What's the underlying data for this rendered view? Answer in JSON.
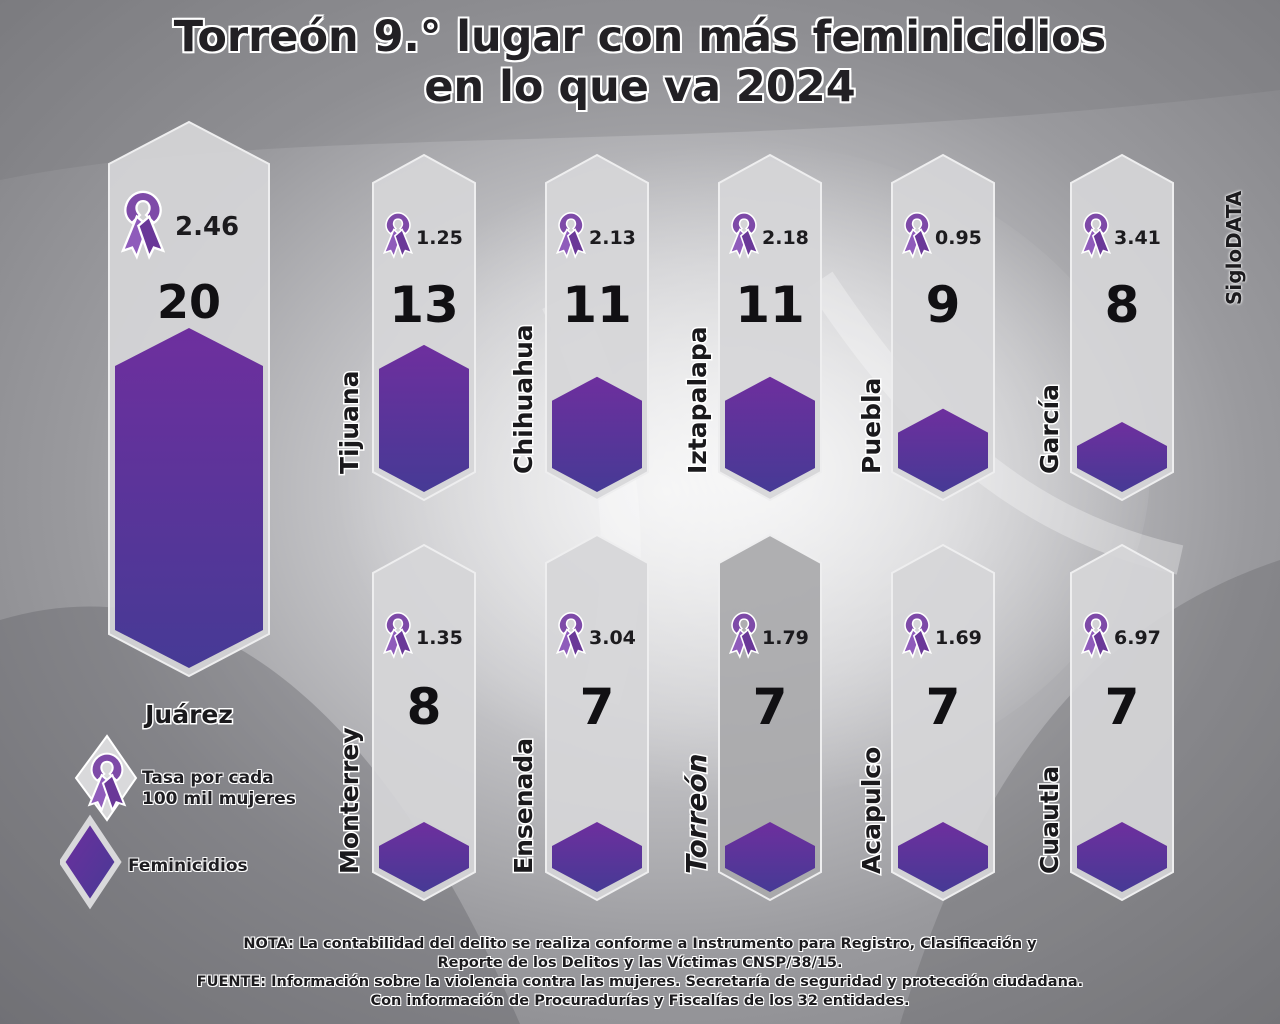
{
  "title": {
    "line1": "Torreón 9.° lugar con más feminicidios",
    "line2": "en lo que va 2024"
  },
  "brand": "SigloDATA",
  "legend": {
    "rate_line1": "Tasa por cada",
    "rate_line2": "100 mil mujeres",
    "count_label": "Feminicidios",
    "rate_icon": "ribbon-icon",
    "count_icon": "diamond-icon"
  },
  "colors": {
    "pillar": "#d6d6d8",
    "pillar_highlight": "#a9a9ab",
    "bar_top": "#6e2f9e",
    "bar_bottom": "#463a95",
    "ribbon": "#7e4aa8",
    "text": "#1c1b1e"
  },
  "chart_data": {
    "type": "bar",
    "categories": [
      "Juárez",
      "Tijuana",
      "Chihuahua",
      "Iztapalapa",
      "Puebla",
      "García",
      "Monterrey",
      "Ensenada",
      "Torreón",
      "Acapulco",
      "Cuautla"
    ],
    "series": [
      {
        "name": "Feminicidios",
        "values": [
          20,
          13,
          11,
          11,
          9,
          8,
          8,
          7,
          7,
          7,
          7
        ]
      },
      {
        "name": "Tasa por cada 100 mil mujeres",
        "values": [
          "2.46",
          "1.25",
          "2.13",
          "2.18",
          "0.95",
          "3.41",
          "1.35",
          "3.04",
          "1.79",
          "1.69",
          "6.97"
        ]
      }
    ],
    "highlight": "Torreón"
  },
  "notes": {
    "line1": "NOTA: La contabilidad del delito se realiza conforme a Instrumento para Registro, Clasificación y",
    "line2": "Reporte de los Delitos y las Víctimas CNSP/38/15.",
    "line3": "FUENTE: Información sobre la violencia contra las mujeres. Secretaría de seguridad y protección ciudadana.",
    "line4": "Con información de Procuradurías y Fiscalías de los 32 entidades."
  }
}
